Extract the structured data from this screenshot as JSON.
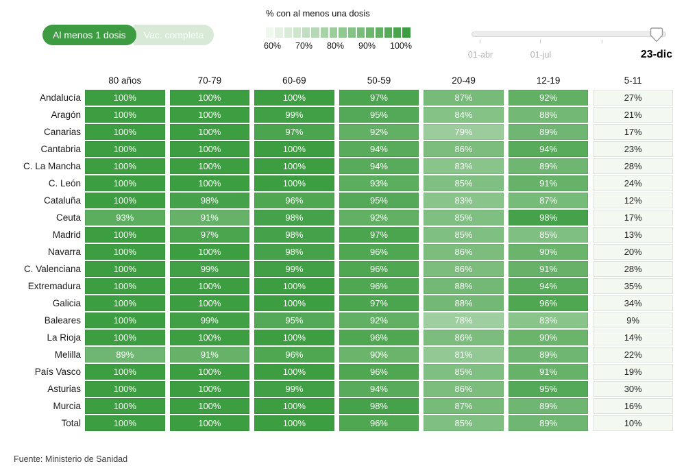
{
  "toggle": {
    "active_label": "Al menos 1 dosis",
    "inactive_label": "Vac. completa"
  },
  "legend": {
    "title": "% con al menos una dosis",
    "tick_labels": [
      "60%",
      "70%",
      "80%",
      "90%",
      "100%"
    ],
    "steps": 16
  },
  "slider": {
    "tick_labels": [
      "01-abr",
      "01-jul"
    ],
    "current_label": "23-dic"
  },
  "footer": {
    "source": "Fuente: Ministerio de Sanidad"
  },
  "colors": {
    "accent_green": "#3d9c41",
    "toggle_inactive_bg": "#d8ead7",
    "scale_low": "#f0f7ee",
    "scale_high": "#3d9e41",
    "below_scale_fill": "#f3f8f1",
    "cell_text_light": "#ffffff",
    "cell_text_dark": "#222222"
  },
  "chart_data": {
    "type": "heatmap",
    "title": "% con al menos una dosis",
    "date_selected": "23-dic",
    "unit": "%",
    "legend_position": "top",
    "color_scale_domain": [
      60,
      100
    ],
    "columns": [
      "80 años",
      "70-79",
      "60-69",
      "50-59",
      "20-49",
      "12-19",
      "5-11"
    ],
    "rows": [
      "Andalucía",
      "Aragón",
      "Canarias",
      "Cantabria",
      "C. La Mancha",
      "C. León",
      "Cataluña",
      "Ceuta",
      "Madrid",
      "Navarra",
      "C. Valenciana",
      "Extremadura",
      "Galicia",
      "Baleares",
      "La Rioja",
      "Melilla",
      "País Vasco",
      "Asturias",
      "Murcia",
      "Total"
    ],
    "values": [
      [
        100,
        100,
        100,
        97,
        87,
        92,
        27
      ],
      [
        100,
        100,
        99,
        95,
        84,
        88,
        21
      ],
      [
        100,
        100,
        97,
        92,
        79,
        89,
        17
      ],
      [
        100,
        100,
        100,
        94,
        86,
        94,
        23
      ],
      [
        100,
        100,
        100,
        94,
        83,
        89,
        28
      ],
      [
        100,
        100,
        100,
        93,
        85,
        91,
        24
      ],
      [
        100,
        98,
        96,
        95,
        83,
        87,
        12
      ],
      [
        93,
        91,
        98,
        92,
        85,
        98,
        17
      ],
      [
        100,
        97,
        98,
        97,
        85,
        85,
        13
      ],
      [
        100,
        100,
        98,
        96,
        86,
        90,
        20
      ],
      [
        100,
        99,
        99,
        96,
        86,
        91,
        28
      ],
      [
        100,
        100,
        100,
        96,
        88,
        94,
        35
      ],
      [
        100,
        100,
        100,
        97,
        88,
        96,
        34
      ],
      [
        100,
        99,
        95,
        92,
        78,
        83,
        9
      ],
      [
        100,
        100,
        100,
        96,
        86,
        90,
        14
      ],
      [
        89,
        91,
        96,
        90,
        81,
        89,
        22
      ],
      [
        100,
        100,
        100,
        96,
        85,
        91,
        19
      ],
      [
        100,
        100,
        99,
        94,
        86,
        95,
        30
      ],
      [
        100,
        100,
        100,
        98,
        87,
        89,
        16
      ],
      [
        100,
        100,
        100,
        96,
        85,
        89,
        10
      ]
    ]
  }
}
